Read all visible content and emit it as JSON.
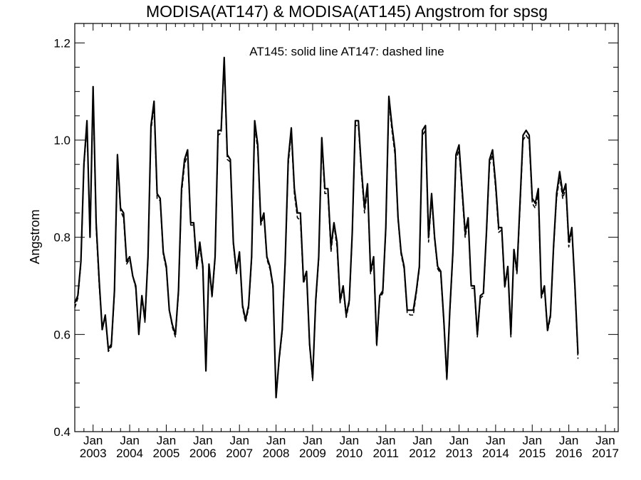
{
  "chart_data": {
    "type": "line",
    "title": "MODISA(AT147) & MODISA(AT145)  Angstrom for spsg",
    "annotation": "AT145: solid line   AT147: dashed line",
    "ylabel": "Angstrom",
    "xlabel": "",
    "ylim": [
      0.4,
      1.24
    ],
    "xlim": [
      2002.5,
      2017.35
    ],
    "y_ticks": [
      "0.4",
      "0.6",
      "0.8",
      "1.0",
      "1.2"
    ],
    "y_tick_values": [
      0.4,
      0.6,
      0.8,
      1.0,
      1.2
    ],
    "x_tick_month": "Jan",
    "x_tick_years": [
      "2003",
      "2004",
      "2005",
      "2006",
      "2007",
      "2008",
      "2009",
      "2010",
      "2011",
      "2012",
      "2013",
      "2014",
      "2015",
      "2016",
      "2017"
    ],
    "grid": false,
    "series": [
      {
        "name": "AT145",
        "style": "solid",
        "x_start": 2002.5,
        "x_step_months": 1,
        "values": [
          0.665,
          0.68,
          0.75,
          0.95,
          1.04,
          0.8,
          1.11,
          0.83,
          0.71,
          0.61,
          0.64,
          0.57,
          0.58,
          0.69,
          0.97,
          0.86,
          0.85,
          0.75,
          0.76,
          0.72,
          0.7,
          0.6,
          0.68,
          0.63,
          0.76,
          1.03,
          1.08,
          0.89,
          0.88,
          0.77,
          0.74,
          0.65,
          0.62,
          0.6,
          0.69,
          0.9,
          0.96,
          0.98,
          0.83,
          0.83,
          0.74,
          0.79,
          0.74,
          0.525,
          0.745,
          0.68,
          0.76,
          1.02,
          1.02,
          1.17,
          0.97,
          0.96,
          0.79,
          0.73,
          0.77,
          0.66,
          0.63,
          0.66,
          0.76,
          1.04,
          0.99,
          0.83,
          0.85,
          0.76,
          0.74,
          0.7,
          0.47,
          0.55,
          0.61,
          0.75,
          0.96,
          1.025,
          0.9,
          0.85,
          0.85,
          0.71,
          0.73,
          0.58,
          0.51,
          0.67,
          0.76,
          1.005,
          0.9,
          0.9,
          0.78,
          0.83,
          0.79,
          0.67,
          0.7,
          0.64,
          0.67,
          0.81,
          1.04,
          1.04,
          0.94,
          0.86,
          0.91,
          0.73,
          0.76,
          0.58,
          0.68,
          0.69,
          0.82,
          1.09,
          1.03,
          0.98,
          0.84,
          0.77,
          0.74,
          0.65,
          0.65,
          0.65,
          0.69,
          0.74,
          1.02,
          1.03,
          0.8,
          0.89,
          0.8,
          0.74,
          0.73,
          0.63,
          0.51,
          0.65,
          0.77,
          0.97,
          0.99,
          0.9,
          0.81,
          0.84,
          0.7,
          0.7,
          0.6,
          0.68,
          0.685,
          0.81,
          0.96,
          0.98,
          0.91,
          0.82,
          0.82,
          0.7,
          0.74,
          0.6,
          0.775,
          0.73,
          0.87,
          1.01,
          1.02,
          1.01,
          0.88,
          0.87,
          0.9,
          0.68,
          0.7,
          0.61,
          0.64,
          0.78,
          0.89,
          0.935,
          0.89,
          0.91,
          0.79,
          0.82,
          0.7,
          0.56
        ]
      },
      {
        "name": "AT147",
        "style": "dashed",
        "x_start": 2002.5,
        "x_step_months": 1,
        "values": [
          0.655,
          0.675,
          0.745,
          0.945,
          1.03,
          0.8,
          1.1,
          0.82,
          0.7,
          0.615,
          0.64,
          0.565,
          0.575,
          0.685,
          0.96,
          0.855,
          0.84,
          0.745,
          0.755,
          0.72,
          0.695,
          0.6,
          0.675,
          0.625,
          0.755,
          1.02,
          1.07,
          0.88,
          0.875,
          0.765,
          0.735,
          0.65,
          0.615,
          0.595,
          0.685,
          0.89,
          0.95,
          0.97,
          0.825,
          0.825,
          0.735,
          0.78,
          0.735,
          0.525,
          0.74,
          0.675,
          0.755,
          1.01,
          1.015,
          1.16,
          0.96,
          0.955,
          0.785,
          0.725,
          0.765,
          0.655,
          0.625,
          0.655,
          0.755,
          1.03,
          0.98,
          0.825,
          0.845,
          0.755,
          0.735,
          0.695,
          0.47,
          0.545,
          0.605,
          0.745,
          0.95,
          1.015,
          0.89,
          0.84,
          0.835,
          0.705,
          0.725,
          0.575,
          0.505,
          0.665,
          0.755,
          0.995,
          0.89,
          0.89,
          0.77,
          0.825,
          0.78,
          0.665,
          0.695,
          0.635,
          0.665,
          0.805,
          1.03,
          1.03,
          0.93,
          0.85,
          0.9,
          0.725,
          0.75,
          0.575,
          0.675,
          0.685,
          0.815,
          1.08,
          1.02,
          0.97,
          0.835,
          0.765,
          0.735,
          0.645,
          0.64,
          0.64,
          0.685,
          0.735,
          1.01,
          1.02,
          0.79,
          0.88,
          0.795,
          0.735,
          0.725,
          0.625,
          0.505,
          0.645,
          0.765,
          0.96,
          0.98,
          0.89,
          0.8,
          0.835,
          0.695,
          0.695,
          0.595,
          0.675,
          0.68,
          0.805,
          0.95,
          0.97,
          0.9,
          0.81,
          0.815,
          0.695,
          0.735,
          0.595,
          0.77,
          0.725,
          0.86,
          1.0,
          1.01,
          1.0,
          0.87,
          0.86,
          0.89,
          0.675,
          0.695,
          0.605,
          0.635,
          0.775,
          0.88,
          0.925,
          0.88,
          0.9,
          0.78,
          0.815,
          0.695,
          0.55
        ]
      }
    ]
  }
}
